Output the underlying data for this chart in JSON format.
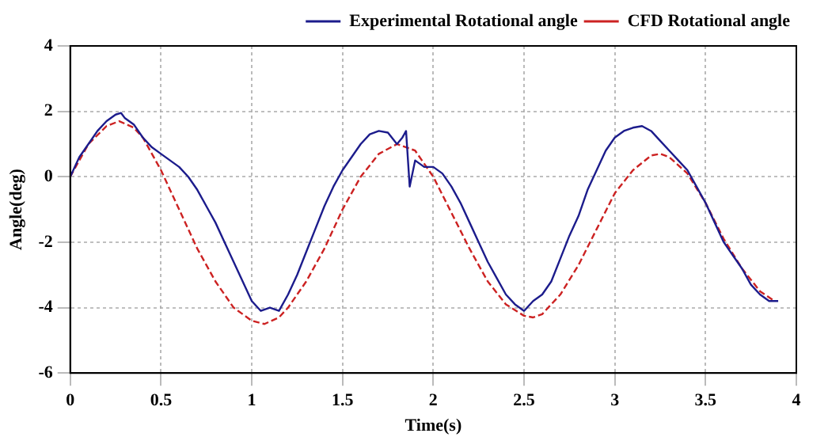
{
  "chart_data": {
    "type": "line",
    "xlabel": "Time(s)",
    "ylabel": "Angle(deg)",
    "xlim": [
      0,
      4
    ],
    "xticks": [
      0,
      0.5,
      1,
      1.5,
      2,
      2.5,
      3,
      3.5,
      4
    ],
    "ylim": [
      -6,
      4
    ],
    "yticks": [
      -6,
      -4,
      -2,
      0,
      2,
      4
    ],
    "grid": true,
    "legend": "top right",
    "marker": "none",
    "series": [
      {
        "name": "Experimental Rotational angle",
        "color": "#1c1c8c",
        "line_style": "solid",
        "x": [
          0,
          0.05,
          0.1,
          0.15,
          0.2,
          0.25,
          0.28,
          0.3,
          0.35,
          0.4,
          0.45,
          0.5,
          0.55,
          0.6,
          0.65,
          0.7,
          0.75,
          0.8,
          0.85,
          0.9,
          0.95,
          1.0,
          1.05,
          1.1,
          1.15,
          1.2,
          1.25,
          1.3,
          1.35,
          1.4,
          1.45,
          1.5,
          1.55,
          1.6,
          1.65,
          1.7,
          1.75,
          1.8,
          1.83,
          1.85,
          1.87,
          1.9,
          1.95,
          2.0,
          2.05,
          2.1,
          2.15,
          2.2,
          2.25,
          2.3,
          2.35,
          2.4,
          2.45,
          2.5,
          2.55,
          2.6,
          2.65,
          2.7,
          2.75,
          2.8,
          2.85,
          2.9,
          2.95,
          3.0,
          3.05,
          3.1,
          3.15,
          3.2,
          3.25,
          3.3,
          3.35,
          3.4,
          3.45,
          3.5,
          3.55,
          3.6,
          3.65,
          3.7,
          3.75,
          3.8,
          3.85,
          3.9
        ],
        "values": [
          0,
          0.6,
          1.0,
          1.4,
          1.7,
          1.9,
          1.95,
          1.8,
          1.6,
          1.2,
          0.9,
          0.7,
          0.5,
          0.3,
          0,
          -0.4,
          -0.9,
          -1.4,
          -2.0,
          -2.6,
          -3.2,
          -3.8,
          -4.1,
          -4.0,
          -4.1,
          -3.6,
          -3.0,
          -2.3,
          -1.6,
          -0.9,
          -0.3,
          0.2,
          0.6,
          1.0,
          1.3,
          1.4,
          1.35,
          1.0,
          1.2,
          1.4,
          -0.3,
          0.5,
          0.3,
          0.3,
          0.1,
          -0.3,
          -0.8,
          -1.4,
          -2.0,
          -2.6,
          -3.1,
          -3.6,
          -3.9,
          -4.1,
          -3.8,
          -3.6,
          -3.2,
          -2.5,
          -1.8,
          -1.2,
          -0.4,
          0.2,
          0.8,
          1.2,
          1.4,
          1.5,
          1.55,
          1.4,
          1.1,
          0.8,
          0.5,
          0.2,
          -0.3,
          -0.8,
          -1.4,
          -2.0,
          -2.4,
          -2.8,
          -3.3,
          -3.6,
          -3.8,
          -3.8
        ]
      },
      {
        "name": "CFD Rotational angle",
        "color": "#cc2222",
        "line_style": "dashed",
        "x": [
          0,
          0.1,
          0.2,
          0.27,
          0.35,
          0.4,
          0.5,
          0.6,
          0.7,
          0.8,
          0.9,
          1.0,
          1.07,
          1.15,
          1.2,
          1.3,
          1.4,
          1.5,
          1.6,
          1.7,
          1.8,
          1.9,
          2.0,
          2.1,
          2.2,
          2.3,
          2.4,
          2.5,
          2.55,
          2.6,
          2.7,
          2.8,
          2.9,
          3.0,
          3.1,
          3.2,
          3.25,
          3.3,
          3.4,
          3.5,
          3.6,
          3.7,
          3.8,
          3.88
        ],
        "values": [
          0,
          1.0,
          1.55,
          1.7,
          1.5,
          1.2,
          0.2,
          -1.0,
          -2.2,
          -3.2,
          -4.0,
          -4.4,
          -4.5,
          -4.3,
          -4.0,
          -3.2,
          -2.2,
          -1.0,
          0,
          0.7,
          1.0,
          0.8,
          0,
          -1.1,
          -2.2,
          -3.2,
          -3.9,
          -4.25,
          -4.3,
          -4.2,
          -3.6,
          -2.7,
          -1.6,
          -0.5,
          0.2,
          0.65,
          0.7,
          0.6,
          0.1,
          -0.8,
          -1.9,
          -2.8,
          -3.5,
          -3.8
        ]
      }
    ]
  }
}
